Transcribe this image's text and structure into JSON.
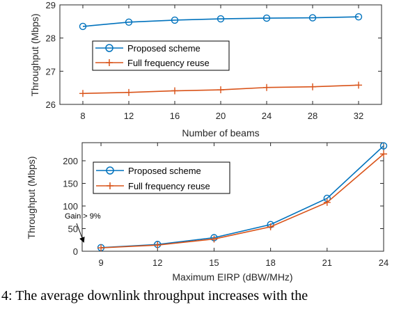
{
  "chart_data": [
    {
      "type": "line",
      "xlabel": "Number of beams",
      "ylabel": "Throughput (Mbps)",
      "x": [
        8,
        12,
        16,
        20,
        24,
        28,
        32
      ],
      "xlim": [
        6,
        34
      ],
      "ylim": [
        26,
        29
      ],
      "xticks": [
        "8",
        "12",
        "16",
        "20",
        "24",
        "28",
        "32"
      ],
      "yticks": [
        "26",
        "27",
        "28",
        "29"
      ],
      "grid": false,
      "legend": "middle-left",
      "series": [
        {
          "name": "Proposed scheme",
          "color": "#0072BD",
          "marker": "circle",
          "values": [
            28.35,
            28.48,
            28.54,
            28.58,
            28.6,
            28.61,
            28.64
          ]
        },
        {
          "name": "Full frequency reuse",
          "color": "#D95319",
          "marker": "plus",
          "values": [
            26.33,
            26.36,
            26.41,
            26.44,
            26.51,
            26.53,
            26.58
          ]
        }
      ]
    },
    {
      "type": "line",
      "xlabel": "Maximum EIRP (dBW/MHz)",
      "ylabel": "Throughput (Mbps)",
      "x": [
        9,
        12,
        15,
        18,
        21,
        24
      ],
      "xlim": [
        8,
        24
      ],
      "ylim": [
        0,
        240
      ],
      "xticks": [
        "9",
        "12",
        "15",
        "18",
        "21",
        "24"
      ],
      "yticks": [
        "0",
        "50",
        "100",
        "150",
        "200"
      ],
      "grid": false,
      "legend": "top-left",
      "annotation": "Gain > 9%",
      "series": [
        {
          "name": "Proposed scheme",
          "color": "#0072BD",
          "marker": "circle",
          "values": [
            8,
            15,
            30,
            59,
            117,
            233
          ]
        },
        {
          "name": "Full frequency reuse",
          "color": "#D95319",
          "marker": "plus",
          "values": [
            7.5,
            13.5,
            27,
            54,
            108,
            215
          ]
        }
      ]
    }
  ],
  "caption": ". 4: The average downlink throughput increases with the"
}
